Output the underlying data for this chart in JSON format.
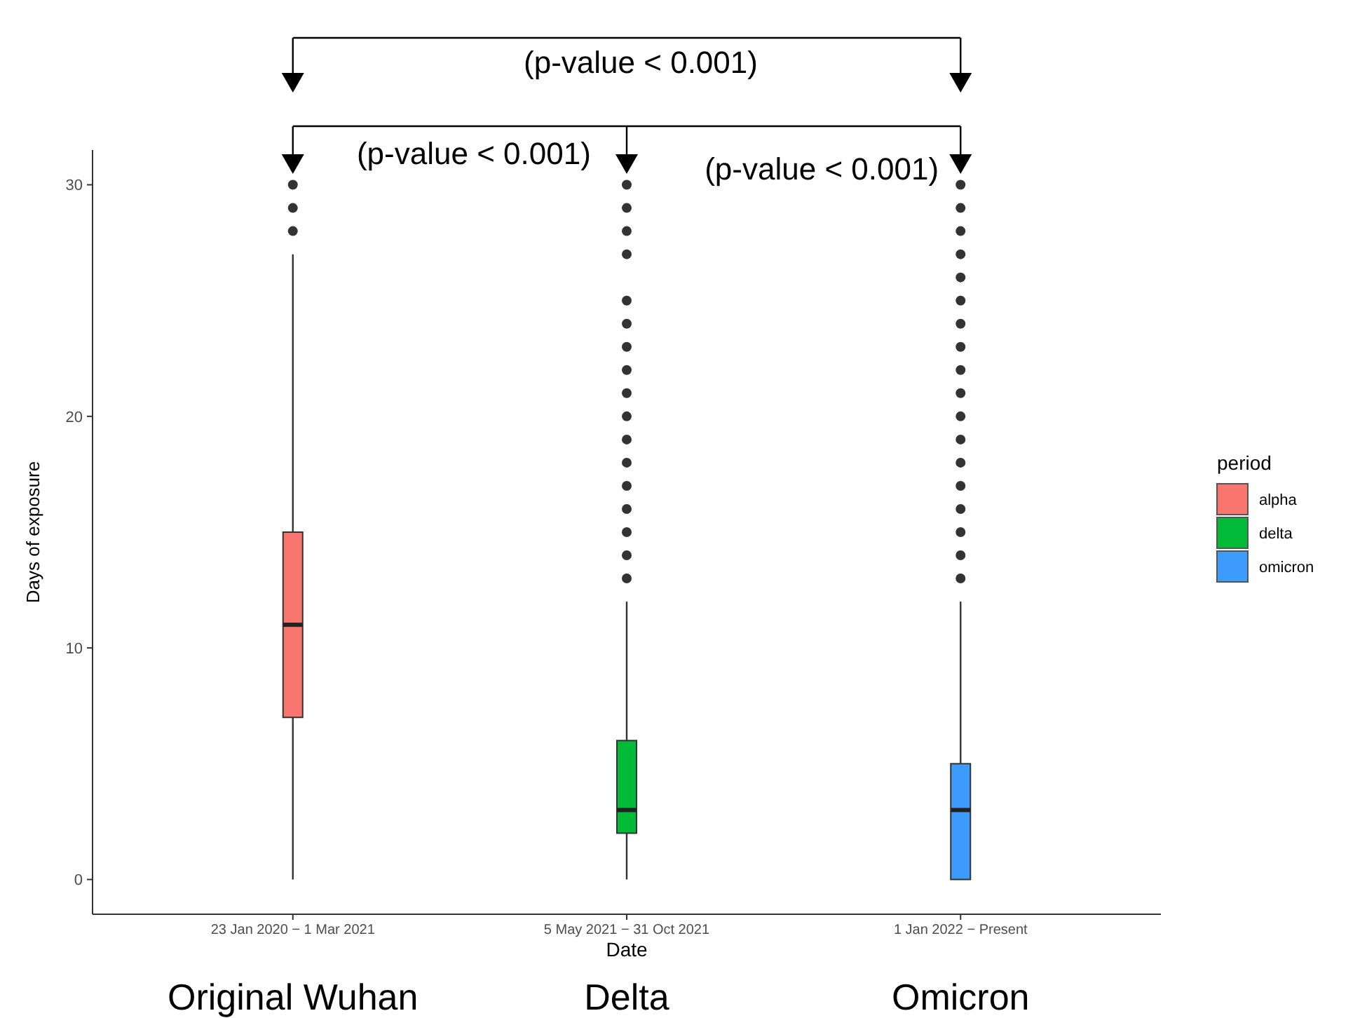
{
  "chart_data": {
    "type": "box",
    "xlabel": "Date",
    "ylabel": "Days of exposure",
    "legend_title": "period",
    "legend": "right",
    "grid": false,
    "categories": [
      "23 Jan 2020 − 1 Mar 2021",
      "5 May 2021 − 31 Oct 2021",
      "1 Jan 2022 − Present"
    ],
    "ylim": [
      -1.5,
      31.5
    ],
    "yticks": [
      0,
      10,
      20,
      30
    ],
    "series": [
      {
        "name": "alpha",
        "color": "#f8766d",
        "boxes": [
          {
            "low": 0,
            "q1": 7,
            "median": 11,
            "q3": 15,
            "high": 27,
            "outliers": [
              28,
              29,
              30
            ]
          },
          null,
          null
        ]
      },
      {
        "name": "delta",
        "color": "#00ba38",
        "boxes": [
          null,
          {
            "low": 0,
            "q1": 2,
            "median": 3,
            "q3": 6,
            "high": 12,
            "outliers": [
              13,
              14,
              15,
              16,
              17,
              18,
              19,
              20,
              21,
              22,
              23,
              24,
              25,
              27,
              28,
              29,
              30
            ]
          },
          null
        ]
      },
      {
        "name": "omicron",
        "color": "#3d9bfc",
        "boxes": [
          null,
          null,
          {
            "low": 0,
            "q1": 0,
            "median": 3,
            "q3": 5,
            "high": 12,
            "outliers": [
              13,
              14,
              15,
              16,
              17,
              18,
              19,
              20,
              21,
              22,
              23,
              24,
              25,
              26,
              27,
              28,
              29,
              30
            ]
          }
        ]
      }
    ],
    "annotations": [
      "(p-value < 0.001)",
      "(p-value < 0.001)",
      "(p-value < 0.001)",
      "Original Wuhan",
      "Delta",
      "Omicron"
    ]
  }
}
